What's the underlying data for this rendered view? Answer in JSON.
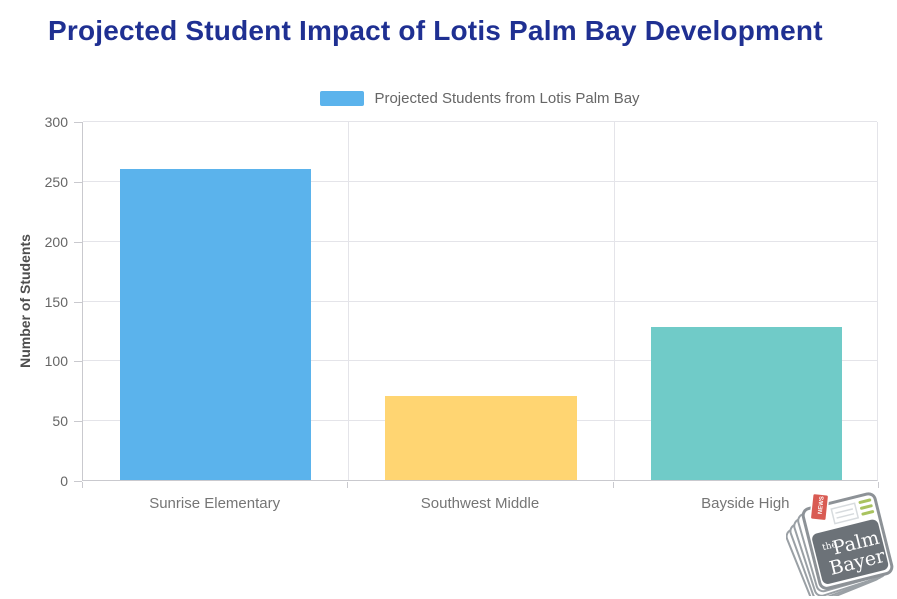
{
  "page": {
    "title": "Projected Student Impact of Lotis Palm Bay Development"
  },
  "legend": {
    "label": "Projected Students from Lotis Palm Bay",
    "swatch_color": "#5BB3EC"
  },
  "chart_data": {
    "type": "bar",
    "title": "Projected Student Impact of Lotis Palm Bay Development",
    "categories": [
      "Sunrise Elementary",
      "Southwest Middle",
      "Bayside High"
    ],
    "series": [
      {
        "name": "Projected Students from Lotis Palm Bay",
        "values": [
          260,
          70,
          128
        ]
      }
    ],
    "bar_colors": [
      "#5BB3EC",
      "#FFD572",
      "#70CBC8"
    ],
    "xlabel": "",
    "ylabel": "Number of Students",
    "ylim": [
      0,
      300
    ],
    "yticks": [
      0,
      50,
      100,
      150,
      200,
      250,
      300
    ],
    "grid": true,
    "legend_position": "top"
  },
  "colors": {
    "title_text": "#1F3092",
    "axis_text": "#666666",
    "category_text": "#757575",
    "gridline": "#E4E4E9",
    "axis_line": "#C9C9CE"
  },
  "logo": {
    "name": "The Palm Bayer",
    "word_the": "the",
    "word_palm": "Palm",
    "word_bayer": "Bayer",
    "tag_text": "NEWS",
    "panel_color": "#6C7278",
    "tag_color": "#D95B53",
    "lines_color": "#A9C35F"
  }
}
